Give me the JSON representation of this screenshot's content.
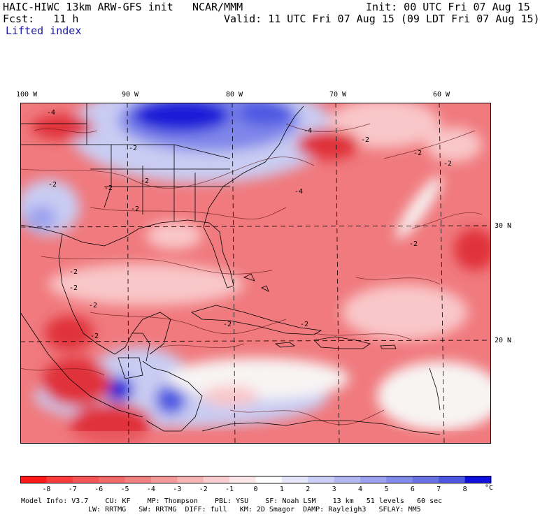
{
  "header": {
    "model_title": "HAIC-HIWC 13km ARW-GFS init",
    "org": "NCAR/MMM",
    "init": "Init: 00 UTC Fri 07 Aug 15",
    "fcst_label": "Fcst:",
    "fcst_value": "11 h",
    "valid": "Valid: 11 UTC Fri 07 Aug 15 (09 LDT Fri 07 Aug 15)",
    "field_name": "Lifted index"
  },
  "map": {
    "lon_labels": [
      "100 W",
      "90 W",
      "80 W",
      "70 W",
      "60 W"
    ],
    "lat_labels": [
      "30 N",
      "20 N"
    ],
    "contour_labels": [
      "-4",
      "-2",
      "-2",
      "-2",
      "-2",
      "-4",
      "-4",
      "-2",
      "-2",
      "-2",
      "-2",
      "-2",
      "-2",
      "-2",
      "-2",
      "-2",
      "-2",
      "-2"
    ],
    "colors": {
      "strong_negative": "#e0303a",
      "negative": "#f07a7e",
      "weak_negative": "#f9c7c9",
      "neutral": "#f8f4f4",
      "weak_positive": "#c9ccf2",
      "positive": "#7f86ea",
      "strong_positive": "#1d1fd8"
    }
  },
  "colorbar": {
    "ticks": [
      "-8",
      "-7",
      "-6",
      "-5",
      "-4",
      "-3",
      "-2",
      "-1",
      "0",
      "1",
      "2",
      "3",
      "4",
      "5",
      "6",
      "7",
      "8"
    ],
    "unit": "°C",
    "colors": [
      "#ff1a1a",
      "#ff3c3c",
      "#f65555",
      "#f26a6a",
      "#f18080",
      "#f49a9a",
      "#f7b4b4",
      "#faced0",
      "#fde7e8",
      "#ffffff",
      "#e6e7fb",
      "#cdd0f6",
      "#b4b8f2",
      "#9ba1ee",
      "#828aea",
      "#6a73e6",
      "#4e58e2",
      "#1111dd"
    ]
  },
  "footer": {
    "line1": [
      "Model Info: V3.7",
      "CU: KF",
      "MP: Thompson",
      "PBL: YSU",
      "SF: Noah LSM",
      "13 km",
      "51 levels",
      "60 sec"
    ],
    "line2": [
      "LW: RRTMG",
      "SW: RRTMG",
      "DIFF: full",
      "KM: 2D Smagor",
      "DAMP: Rayleigh3",
      "SFLAY: MM5"
    ]
  }
}
